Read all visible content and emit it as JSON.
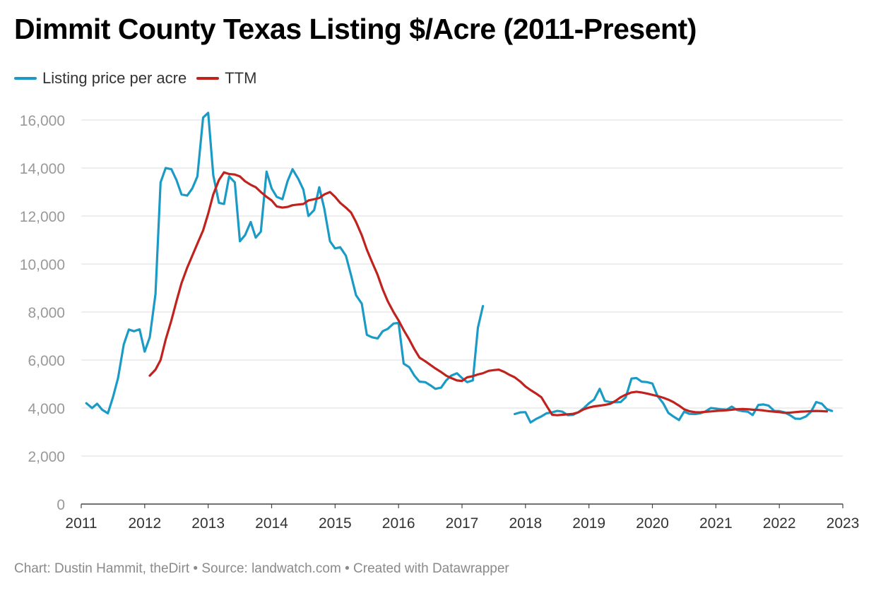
{
  "title": "Dimmit County Texas Listing $/Acre (2011-Present)",
  "footer": "Chart: Dustin Hammit, theDirt • Source: landwatch.com • Created with Datawrapper",
  "chart_data": {
    "type": "line",
    "title": "Dimmit County Texas Listing $/Acre (2011-Present)",
    "xlabel": "",
    "ylabel": "",
    "xlim": [
      2011,
      2023
    ],
    "ylim": [
      0,
      16000
    ],
    "x_ticks": [
      "2011",
      "2012",
      "2013",
      "2014",
      "2015",
      "2016",
      "2017",
      "2018",
      "2019",
      "2020",
      "2021",
      "2022",
      "2023"
    ],
    "y_ticks": [
      "0",
      "2,000",
      "4,000",
      "6,000",
      "8,000",
      "10,000",
      "12,000",
      "14,000",
      "16,000"
    ],
    "grid": "horizontal",
    "legend": "top-left",
    "series": [
      {
        "name": "Listing price per acre",
        "color": "#1a9bc6",
        "points": [
          [
            2011.08,
            4200
          ],
          [
            2011.17,
            4000
          ],
          [
            2011.25,
            4180
          ],
          [
            2011.33,
            3930
          ],
          [
            2011.42,
            3780
          ],
          [
            2011.5,
            4450
          ],
          [
            2011.58,
            5250
          ],
          [
            2011.67,
            6650
          ],
          [
            2011.75,
            7270
          ],
          [
            2011.83,
            7200
          ],
          [
            2011.92,
            7280
          ],
          [
            2012.0,
            6350
          ],
          [
            2012.08,
            6950
          ],
          [
            2012.17,
            8750
          ],
          [
            2012.25,
            13400
          ],
          [
            2012.33,
            14000
          ],
          [
            2012.42,
            13950
          ],
          [
            2012.5,
            13500
          ],
          [
            2012.58,
            12900
          ],
          [
            2012.67,
            12850
          ],
          [
            2012.75,
            13150
          ],
          [
            2012.83,
            13650
          ],
          [
            2012.92,
            16100
          ],
          [
            2013.0,
            16300
          ],
          [
            2013.08,
            13700
          ],
          [
            2013.17,
            12550
          ],
          [
            2013.25,
            12500
          ],
          [
            2013.33,
            13650
          ],
          [
            2013.42,
            13400
          ],
          [
            2013.5,
            10950
          ],
          [
            2013.58,
            11200
          ],
          [
            2013.67,
            11750
          ],
          [
            2013.75,
            11100
          ],
          [
            2013.83,
            11350
          ],
          [
            2013.92,
            13850
          ],
          [
            2014.0,
            13150
          ],
          [
            2014.08,
            12800
          ],
          [
            2014.17,
            12700
          ],
          [
            2014.25,
            13450
          ],
          [
            2014.33,
            13950
          ],
          [
            2014.42,
            13550
          ],
          [
            2014.5,
            13100
          ],
          [
            2014.58,
            12000
          ],
          [
            2014.67,
            12250
          ],
          [
            2014.75,
            13200
          ],
          [
            2014.83,
            12300
          ],
          [
            2014.92,
            10950
          ],
          [
            2015.0,
            10650
          ],
          [
            2015.08,
            10700
          ],
          [
            2015.17,
            10350
          ],
          [
            2015.25,
            9550
          ],
          [
            2015.33,
            8700
          ],
          [
            2015.42,
            8350
          ],
          [
            2015.5,
            7050
          ],
          [
            2015.58,
            6950
          ],
          [
            2015.67,
            6900
          ],
          [
            2015.75,
            7200
          ],
          [
            2015.83,
            7300
          ],
          [
            2015.92,
            7520
          ],
          [
            2016.0,
            7550
          ],
          [
            2016.08,
            5850
          ],
          [
            2016.17,
            5700
          ],
          [
            2016.25,
            5350
          ],
          [
            2016.33,
            5100
          ],
          [
            2016.42,
            5080
          ],
          [
            2016.5,
            4950
          ],
          [
            2016.58,
            4800
          ],
          [
            2016.67,
            4850
          ],
          [
            2016.75,
            5150
          ],
          [
            2016.83,
            5350
          ],
          [
            2016.92,
            5450
          ],
          [
            2017.0,
            5250
          ],
          [
            2017.08,
            5080
          ],
          [
            2017.17,
            5150
          ],
          [
            2017.25,
            7350
          ],
          [
            2017.33,
            8250
          ],
          null,
          [
            2017.83,
            3750
          ],
          [
            2017.92,
            3820
          ],
          [
            2018.0,
            3830
          ],
          [
            2018.08,
            3400
          ],
          [
            2018.17,
            3550
          ],
          [
            2018.25,
            3650
          ],
          [
            2018.33,
            3780
          ],
          [
            2018.42,
            3820
          ],
          [
            2018.5,
            3880
          ],
          [
            2018.58,
            3850
          ],
          [
            2018.67,
            3700
          ],
          [
            2018.75,
            3720
          ],
          [
            2018.83,
            3820
          ],
          [
            2018.92,
            4000
          ],
          [
            2019.0,
            4200
          ],
          [
            2019.08,
            4350
          ],
          [
            2019.17,
            4800
          ],
          [
            2019.25,
            4300
          ],
          [
            2019.33,
            4250
          ],
          [
            2019.42,
            4240
          ],
          [
            2019.5,
            4250
          ],
          [
            2019.58,
            4450
          ],
          [
            2019.67,
            5230
          ],
          [
            2019.75,
            5250
          ],
          [
            2019.83,
            5100
          ],
          [
            2019.92,
            5080
          ],
          [
            2020.0,
            5020
          ],
          [
            2020.08,
            4500
          ],
          [
            2020.17,
            4200
          ],
          [
            2020.25,
            3800
          ],
          [
            2020.33,
            3650
          ],
          [
            2020.42,
            3500
          ],
          [
            2020.5,
            3850
          ],
          [
            2020.58,
            3760
          ],
          [
            2020.67,
            3750
          ],
          [
            2020.75,
            3780
          ],
          [
            2020.83,
            3850
          ],
          [
            2020.92,
            4000
          ],
          [
            2021.0,
            3980
          ],
          [
            2021.08,
            3950
          ],
          [
            2021.17,
            3930
          ],
          [
            2021.25,
            4060
          ],
          [
            2021.33,
            3920
          ],
          [
            2021.42,
            3870
          ],
          [
            2021.5,
            3850
          ],
          [
            2021.58,
            3710
          ],
          [
            2021.67,
            4130
          ],
          [
            2021.75,
            4150
          ],
          [
            2021.83,
            4100
          ],
          [
            2021.92,
            3880
          ],
          [
            2022.0,
            3870
          ],
          [
            2022.08,
            3820
          ],
          [
            2022.17,
            3700
          ],
          [
            2022.25,
            3560
          ],
          [
            2022.33,
            3550
          ],
          [
            2022.42,
            3650
          ],
          [
            2022.5,
            3850
          ],
          [
            2022.58,
            4250
          ],
          [
            2022.67,
            4180
          ],
          [
            2022.75,
            3950
          ],
          [
            2022.83,
            3880
          ]
        ]
      },
      {
        "name": "TTM",
        "color": "#c0221e",
        "points": [
          [
            2012.08,
            5350
          ],
          [
            2012.17,
            5600
          ],
          [
            2012.25,
            6000
          ],
          [
            2012.33,
            6850
          ],
          [
            2012.42,
            7650
          ],
          [
            2012.5,
            8450
          ],
          [
            2012.58,
            9200
          ],
          [
            2012.67,
            9850
          ],
          [
            2012.75,
            10350
          ],
          [
            2012.83,
            10850
          ],
          [
            2012.92,
            11400
          ],
          [
            2013.0,
            12100
          ],
          [
            2013.08,
            12900
          ],
          [
            2013.17,
            13500
          ],
          [
            2013.25,
            13820
          ],
          [
            2013.33,
            13750
          ],
          [
            2013.42,
            13730
          ],
          [
            2013.5,
            13650
          ],
          [
            2013.58,
            13450
          ],
          [
            2013.67,
            13300
          ],
          [
            2013.75,
            13200
          ],
          [
            2013.83,
            13000
          ],
          [
            2013.92,
            12800
          ],
          [
            2014.0,
            12650
          ],
          [
            2014.08,
            12400
          ],
          [
            2014.17,
            12350
          ],
          [
            2014.25,
            12380
          ],
          [
            2014.33,
            12450
          ],
          [
            2014.42,
            12480
          ],
          [
            2014.5,
            12500
          ],
          [
            2014.58,
            12650
          ],
          [
            2014.67,
            12700
          ],
          [
            2014.75,
            12750
          ],
          [
            2014.83,
            12900
          ],
          [
            2014.92,
            13000
          ],
          [
            2015.0,
            12800
          ],
          [
            2015.08,
            12550
          ],
          [
            2015.17,
            12350
          ],
          [
            2015.25,
            12150
          ],
          [
            2015.33,
            11750
          ],
          [
            2015.42,
            11200
          ],
          [
            2015.5,
            10600
          ],
          [
            2015.58,
            10100
          ],
          [
            2015.67,
            9550
          ],
          [
            2015.75,
            8950
          ],
          [
            2015.83,
            8450
          ],
          [
            2015.92,
            8000
          ],
          [
            2016.0,
            7650
          ],
          [
            2016.08,
            7250
          ],
          [
            2016.17,
            6850
          ],
          [
            2016.25,
            6450
          ],
          [
            2016.33,
            6100
          ],
          [
            2016.42,
            5950
          ],
          [
            2016.5,
            5800
          ],
          [
            2016.58,
            5650
          ],
          [
            2016.67,
            5500
          ],
          [
            2016.75,
            5350
          ],
          [
            2016.83,
            5250
          ],
          [
            2016.92,
            5150
          ],
          [
            2017.0,
            5130
          ],
          [
            2017.08,
            5280
          ],
          [
            2017.17,
            5330
          ],
          [
            2017.25,
            5400
          ],
          [
            2017.33,
            5450
          ],
          [
            2017.42,
            5550
          ],
          [
            2017.5,
            5580
          ],
          [
            2017.58,
            5600
          ],
          [
            2017.67,
            5500
          ],
          [
            2017.75,
            5380
          ],
          [
            2017.83,
            5280
          ],
          [
            2017.92,
            5100
          ],
          [
            2018.0,
            4900
          ],
          [
            2018.08,
            4750
          ],
          [
            2018.17,
            4600
          ],
          [
            2018.25,
            4450
          ],
          [
            2018.33,
            4100
          ],
          [
            2018.42,
            3720
          ],
          [
            2018.5,
            3700
          ],
          [
            2018.58,
            3720
          ],
          [
            2018.67,
            3740
          ],
          [
            2018.75,
            3760
          ],
          [
            2018.83,
            3820
          ],
          [
            2018.92,
            3950
          ],
          [
            2019.0,
            4020
          ],
          [
            2019.08,
            4070
          ],
          [
            2019.17,
            4100
          ],
          [
            2019.25,
            4130
          ],
          [
            2019.33,
            4170
          ],
          [
            2019.42,
            4300
          ],
          [
            2019.5,
            4450
          ],
          [
            2019.58,
            4560
          ],
          [
            2019.67,
            4650
          ],
          [
            2019.75,
            4680
          ],
          [
            2019.83,
            4650
          ],
          [
            2019.92,
            4600
          ],
          [
            2020.0,
            4550
          ],
          [
            2020.08,
            4500
          ],
          [
            2020.17,
            4430
          ],
          [
            2020.25,
            4350
          ],
          [
            2020.33,
            4250
          ],
          [
            2020.42,
            4100
          ],
          [
            2020.5,
            3950
          ],
          [
            2020.58,
            3870
          ],
          [
            2020.67,
            3830
          ],
          [
            2020.75,
            3820
          ],
          [
            2020.83,
            3840
          ],
          [
            2020.92,
            3860
          ],
          [
            2021.0,
            3880
          ],
          [
            2021.08,
            3890
          ],
          [
            2021.17,
            3910
          ],
          [
            2021.25,
            3930
          ],
          [
            2021.33,
            3950
          ],
          [
            2021.42,
            3960
          ],
          [
            2021.5,
            3950
          ],
          [
            2021.58,
            3930
          ],
          [
            2021.67,
            3920
          ],
          [
            2021.75,
            3900
          ],
          [
            2021.83,
            3870
          ],
          [
            2021.92,
            3850
          ],
          [
            2022.0,
            3830
          ],
          [
            2022.08,
            3800
          ],
          [
            2022.17,
            3810
          ],
          [
            2022.25,
            3830
          ],
          [
            2022.33,
            3850
          ],
          [
            2022.42,
            3860
          ],
          [
            2022.5,
            3870
          ],
          [
            2022.58,
            3880
          ],
          [
            2022.67,
            3870
          ],
          [
            2022.75,
            3860
          ]
        ]
      }
    ]
  }
}
